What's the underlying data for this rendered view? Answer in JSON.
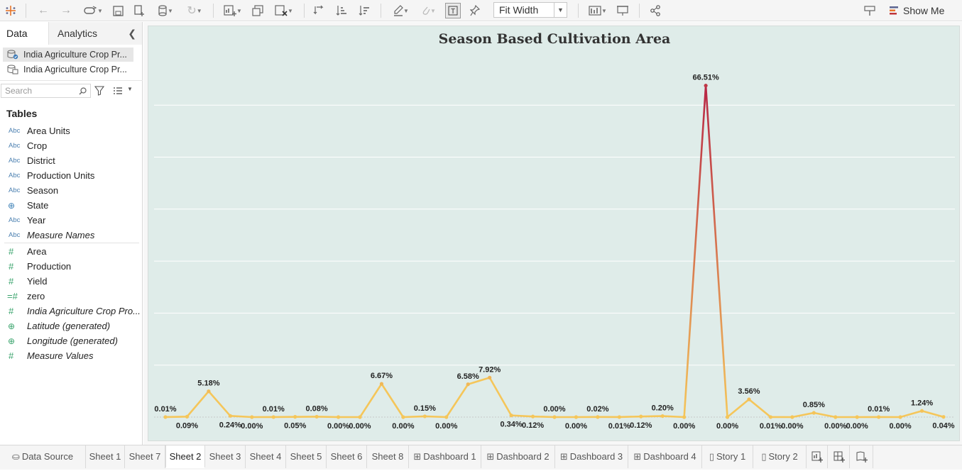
{
  "toolbar": {
    "fit_select": "Fit Width",
    "show_me": "Show Me"
  },
  "sidebar": {
    "tabs": [
      "Data",
      "Analytics"
    ],
    "datasources": [
      "India Agriculture Crop Pr...",
      "India Agriculture Crop Pr..."
    ],
    "search_placeholder": "Search",
    "tables_heading": "Tables",
    "fields": [
      {
        "type": "Abc",
        "name": "Area Units",
        "italic": false
      },
      {
        "type": "Abc",
        "name": "Crop",
        "italic": false
      },
      {
        "type": "Abc",
        "name": "District",
        "italic": false
      },
      {
        "type": "Abc",
        "name": "Production Units",
        "italic": false
      },
      {
        "type": "Abc",
        "name": "Season",
        "italic": false
      },
      {
        "type": "geo",
        "name": "State",
        "italic": false
      },
      {
        "type": "Abc",
        "name": "Year",
        "italic": false
      },
      {
        "type": "Abc",
        "name": "Measure Names",
        "italic": true
      },
      {
        "type": "#",
        "name": "Area",
        "italic": false
      },
      {
        "type": "#",
        "name": "Production",
        "italic": false
      },
      {
        "type": "#",
        "name": "Yield",
        "italic": false
      },
      {
        "type": "=#",
        "name": "zero",
        "italic": false
      },
      {
        "type": "#",
        "name": "India Agriculture Crop Pro...",
        "italic": true
      },
      {
        "type": "geog",
        "name": "Latitude (generated)",
        "italic": true
      },
      {
        "type": "geog",
        "name": "Longitude (generated)",
        "italic": true
      },
      {
        "type": "#",
        "name": "Measure Values",
        "italic": true
      }
    ]
  },
  "sheet_title": "Season Based Cultivation Area",
  "chart_data": {
    "type": "line",
    "title": "Season Based Cultivation Area",
    "values": [
      0.01,
      0.09,
      5.18,
      0.24,
      0.0,
      0.01,
      0.05,
      0.08,
      0.0,
      0.0,
      6.67,
      0.0,
      0.15,
      0.0,
      6.58,
      7.92,
      0.34,
      0.12,
      0.0,
      0.0,
      0.02,
      0.01,
      0.12,
      0.2,
      0.0,
      66.51,
      0.0,
      3.56,
      0.01,
      0.0,
      0.85,
      0.0,
      0.0,
      0.01,
      0.0,
      1.24,
      0.04
    ],
    "labels": [
      "0.01%",
      "0.09%",
      "5.18%",
      "0.24%",
      "0.00%",
      "0.01%",
      "0.05%",
      "0.08%",
      "0.00%",
      "0.00%",
      "6.67%",
      "0.00%",
      "0.15%",
      "0.00%",
      "6.58%",
      "7.92%",
      "0.34%",
      "0.12%",
      "0.00%",
      "0.00%",
      "0.02%",
      "0.01%",
      "0.12%",
      "0.20%",
      "0.00%",
      "66.51%",
      "0.00%",
      "3.56%",
      "0.01%",
      "0.00%",
      "0.85%",
      "0.00%",
      "0.00%",
      "0.01%",
      "0.00%",
      "1.24%",
      "0.04%"
    ],
    "label_position": [
      "above",
      "below",
      "above",
      "below",
      "below",
      "above",
      "below",
      "above",
      "below",
      "below",
      "above",
      "below",
      "above",
      "below",
      "above",
      "above",
      "below",
      "below",
      "above",
      "below",
      "above",
      "below",
      "below",
      "above",
      "below",
      "above",
      "below",
      "above",
      "below",
      "below",
      "above",
      "below",
      "below",
      "above",
      "below",
      "above",
      "below"
    ],
    "ylim": [
      0,
      75
    ],
    "color_low": "#f5c65a",
    "color_high": "#b82645",
    "grid": true
  },
  "bottom_tabs": [
    {
      "label": "Data Source",
      "kind": "datasource",
      "active": false
    },
    {
      "label": "Sheet 1",
      "kind": "sheet",
      "active": false
    },
    {
      "label": "Sheet 7",
      "kind": "sheet",
      "active": false
    },
    {
      "label": "Sheet 2",
      "kind": "sheet",
      "active": true
    },
    {
      "label": "Sheet 3",
      "kind": "sheet",
      "active": false
    },
    {
      "label": "Sheet 4",
      "kind": "sheet",
      "active": false
    },
    {
      "label": "Sheet 5",
      "kind": "sheet",
      "active": false
    },
    {
      "label": "Sheet 6",
      "kind": "sheet",
      "active": false
    },
    {
      "label": "Sheet 8",
      "kind": "sheet",
      "active": false
    },
    {
      "label": "Dashboard 1",
      "kind": "dashboard",
      "active": false
    },
    {
      "label": "Dashboard 2",
      "kind": "dashboard",
      "active": false
    },
    {
      "label": "Dashboard 3",
      "kind": "dashboard",
      "active": false
    },
    {
      "label": "Dashboard 4",
      "kind": "dashboard",
      "active": false
    },
    {
      "label": "Story 1",
      "kind": "story",
      "active": false
    },
    {
      "label": "Story 2",
      "kind": "story",
      "active": false
    }
  ]
}
